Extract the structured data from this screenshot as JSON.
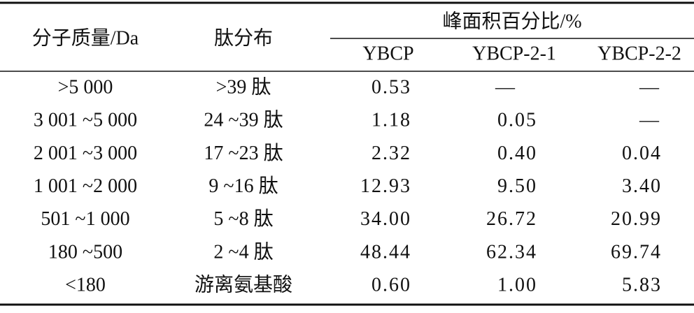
{
  "header": {
    "molecular_weight": "分子质量/Da",
    "peptide": "肽分布",
    "peak_area": "峰面积百分比/%",
    "samples": [
      "YBCP",
      "YBCP-2-1",
      "YBCP-2-2"
    ]
  },
  "table": {
    "rows": [
      [
        ">5 000",
        ">39 肽",
        "0.53",
        "—",
        "—"
      ],
      [
        "3 001 ~5 000",
        "24 ~39 肽",
        "1.18",
        "0.05",
        "—"
      ],
      [
        "2 001 ~3 000",
        "17 ~23 肽",
        "2.32",
        "0.40",
        "0.04"
      ],
      [
        "1 001 ~2 000",
        "9 ~16 肽",
        "12.93",
        "9.50",
        "3.40"
      ],
      [
        "501 ~1 000",
        "5 ~8 肽",
        "34.00",
        "26.72",
        "20.99"
      ],
      [
        "180 ~500",
        "2 ~4 肽",
        "48.44",
        "62.34",
        "69.74"
      ],
      [
        "<180",
        "游离氨基酸",
        "0.60",
        "1.00",
        "5.83"
      ]
    ]
  }
}
